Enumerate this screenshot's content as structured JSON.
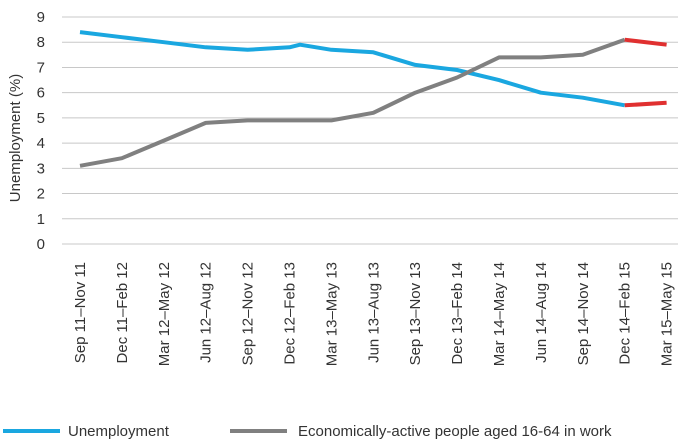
{
  "chart_data": {
    "type": "line",
    "title": "",
    "xlabel": "",
    "ylabel": "Unemployment (%)",
    "ylim": [
      0,
      9
    ],
    "yticks": [
      0,
      1,
      2,
      3,
      4,
      5,
      6,
      7,
      8,
      9
    ],
    "grid": true,
    "legend_position": "bottom",
    "categories": [
      "Sep 11–Nov 11",
      "Dec 11–Feb 12",
      "Mar 12–May 12",
      "Jun 12–Aug 12",
      "Sep 12–Nov 12",
      "Dec 12–Feb 13",
      "Mar 13–May 13",
      "Jun 13–Aug 13",
      "Sep 13–Nov 13",
      "Dec 13–Feb 14",
      "Mar 14–May 14",
      "Jun 14–Aug 14",
      "Sep 14–Nov 14",
      "Dec 14–Feb 15",
      "Mar 15–May 15"
    ],
    "series": [
      {
        "name": "Unemployment",
        "color": "#1aa7e0",
        "values": [
          8.4,
          8.2,
          8.0,
          7.8,
          7.7,
          7.8,
          7.7,
          7.6,
          7.1,
          6.9,
          6.5,
          6.0,
          5.8,
          5.5,
          5.6
        ],
        "points_x": [
          0,
          1,
          2,
          3,
          4,
          5,
          5.25,
          6,
          7,
          8,
          9,
          10,
          11,
          12,
          13,
          14
        ],
        "points_y": [
          8.4,
          8.2,
          8.0,
          7.8,
          7.7,
          7.8,
          7.9,
          7.7,
          7.6,
          7.1,
          6.9,
          6.5,
          6.0,
          5.8,
          5.5,
          5.6
        ]
      },
      {
        "name": "Economically-active people aged 16-64 in work",
        "color": "#808080",
        "values": [
          3.1,
          3.4,
          4.1,
          4.8,
          4.9,
          4.9,
          4.9,
          5.2,
          6.0,
          6.6,
          7.4,
          7.4,
          7.5,
          8.1,
          7.9
        ],
        "points_x": [
          0,
          1,
          2,
          3,
          4,
          5,
          6,
          7,
          8,
          9,
          10,
          11,
          12,
          13,
          14
        ],
        "points_y": [
          3.1,
          3.4,
          4.1,
          4.8,
          4.9,
          4.9,
          4.9,
          5.2,
          6.0,
          6.6,
          7.4,
          7.4,
          7.5,
          8.1,
          7.9
        ]
      }
    ],
    "highlight": {
      "color": "#e03030",
      "from_index": 13,
      "to_index": 14
    }
  }
}
